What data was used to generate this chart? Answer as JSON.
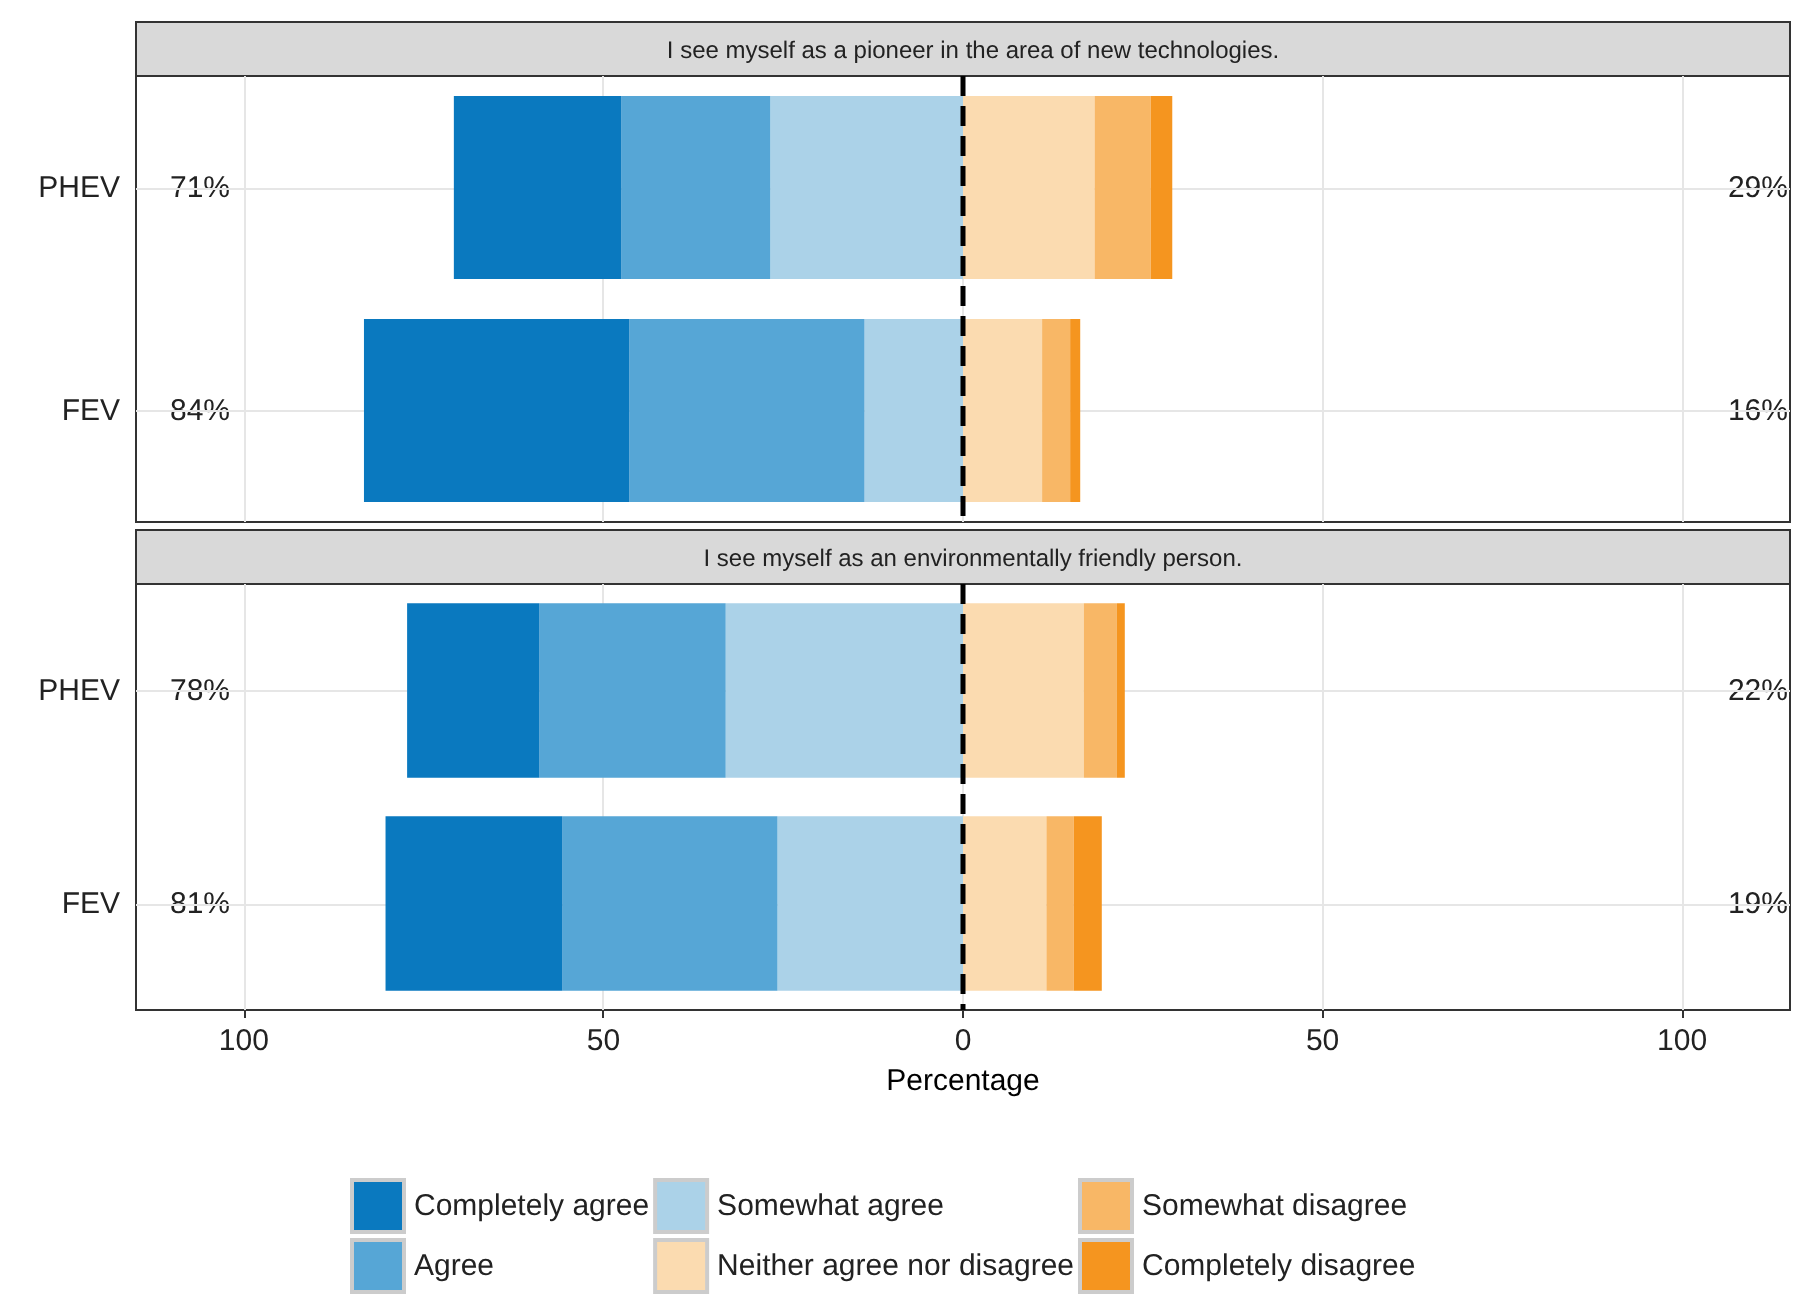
{
  "chart_data": [
    {
      "type": "bar",
      "orientation": "horizontal",
      "stacked": true,
      "title": "I see myself as a pioneer in the area of new technologies.",
      "categories": [
        "PHEV",
        "FEV"
      ],
      "series": [
        {
          "color": "#abd2e8",
          "values": [
            -26.8,
            -13.7
          ]
        },
        {
          "color": "#56a6d6",
          "values": [
            -20.7,
            -32.7
          ]
        },
        {
          "color": "#0a79bf",
          "values": [
            -23.3,
            -36.9
          ]
        },
        {
          "color": "#fbdbb0",
          "values": [
            18.3,
            11.0
          ]
        },
        {
          "color": "#f8b766",
          "values": [
            7.8,
            3.9
          ]
        },
        {
          "color": "#f5951f",
          "values": [
            3.0,
            1.4
          ]
        }
      ],
      "xlim": [
        -115,
        115
      ],
      "tick_labels": "y",
      "grid": true,
      "legend": false,
      "ref_lines": [
        {
          "axis": "x",
          "value": 0,
          "label": null,
          "color": "#000000",
          "line_style": "dashed"
        }
      ],
      "annotations": [
        "71%",
        "84%",
        "29%",
        "16%"
      ]
    },
    {
      "type": "bar",
      "orientation": "horizontal",
      "stacked": true,
      "title": "I see myself as an environmentally friendly person.",
      "categories": [
        "PHEV",
        "FEV"
      ],
      "xlabel": "Percentage",
      "series": [
        {
          "name": "Somewhat agree",
          "color": "#abd2e8",
          "values": [
            -33.0,
            -25.8
          ]
        },
        {
          "name": "Agree",
          "color": "#56a6d6",
          "values": [
            -25.9,
            -29.9
          ]
        },
        {
          "name": "Completely agree",
          "color": "#0a79bf",
          "values": [
            -18.4,
            -24.6
          ]
        },
        {
          "name": "Neither agree nor disagree",
          "color": "#fbdbb0",
          "values": [
            16.8,
            11.6
          ]
        },
        {
          "name": "Somewhat disagree",
          "color": "#f8b766",
          "values": [
            4.6,
            3.8
          ]
        },
        {
          "name": "Completely disagree",
          "color": "#f5951f",
          "values": [
            1.1,
            3.9
          ]
        }
      ],
      "xlim": [
        -115,
        115
      ],
      "xticks": [
        {
          "value": -100,
          "label": "100"
        },
        {
          "value": -50,
          "label": "50"
        },
        0,
        50,
        {
          "value": 100,
          "label": "100"
        }
      ],
      "grid": true,
      "legend": "bottom",
      "ref_lines": [
        {
          "axis": "x",
          "value": 0,
          "label": null,
          "color": "#000000",
          "line_style": "dashed"
        }
      ],
      "annotations": [
        "78%",
        "81%",
        "22%",
        "19%"
      ]
    }
  ]
}
